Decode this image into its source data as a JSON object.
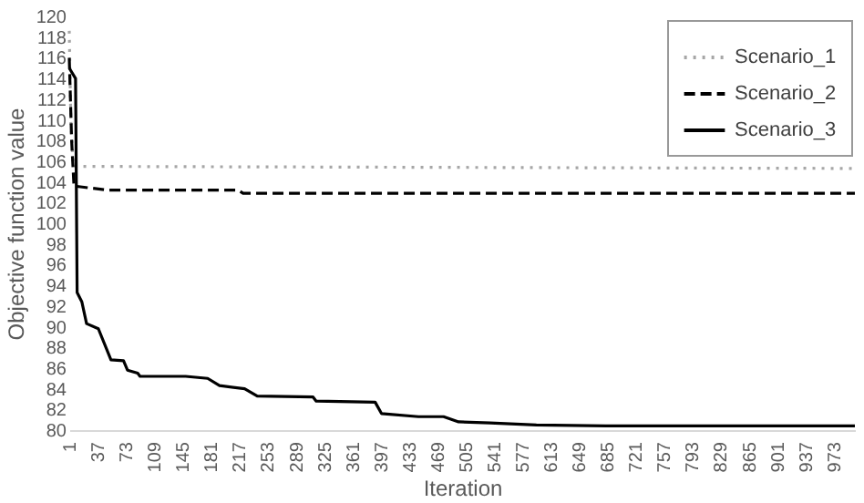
{
  "chart_data": {
    "type": "line",
    "xlabel": "Iteration",
    "ylabel": "Objective function value",
    "xlim": [
      1,
      1000
    ],
    "xticks": [
      1,
      37,
      73,
      109,
      145,
      181,
      217,
      253,
      289,
      325,
      361,
      397,
      433,
      469,
      505,
      541,
      577,
      613,
      649,
      685,
      721,
      757,
      793,
      829,
      865,
      901,
      937,
      973
    ],
    "ylim": [
      80,
      120
    ],
    "yticks": [
      80,
      82,
      84,
      86,
      88,
      90,
      92,
      94,
      96,
      98,
      100,
      102,
      104,
      106,
      108,
      110,
      112,
      114,
      116,
      118,
      120
    ],
    "grid": false,
    "legend": "top right",
    "marker": "none",
    "series": [
      {
        "name": "Scenario_1",
        "color": "#a6a6a6",
        "line_style": "dotted",
        "x": [
          1,
          3,
          6,
          1000
        ],
        "values": [
          118.6,
          110,
          105.5,
          105.3
        ]
      },
      {
        "name": "Scenario_2",
        "color": "#000000",
        "line_style": "dashed",
        "x": [
          1,
          4,
          7,
          50,
          216,
          222,
          1000
        ],
        "values": [
          116,
          108,
          103.6,
          103.2,
          103.2,
          102.9,
          102.9
        ]
      },
      {
        "name": "Scenario_3",
        "color": "#000000",
        "line_style": "solid",
        "x": [
          1,
          9,
          11,
          17,
          23,
          38,
          54,
          70,
          75,
          88,
          91,
          149,
          177,
          192,
          224,
          240,
          311,
          315,
          390,
          398,
          445,
          477,
          496,
          536,
          595,
          683,
          1000
        ],
        "values": [
          115,
          114,
          93.3,
          92.4,
          90.3,
          89.8,
          86.8,
          86.7,
          85.8,
          85.5,
          85.2,
          85.2,
          85.0,
          84.3,
          84.0,
          83.3,
          83.2,
          82.8,
          82.7,
          81.6,
          81.3,
          81.3,
          80.8,
          80.7,
          80.5,
          80.4,
          80.4
        ]
      }
    ]
  }
}
